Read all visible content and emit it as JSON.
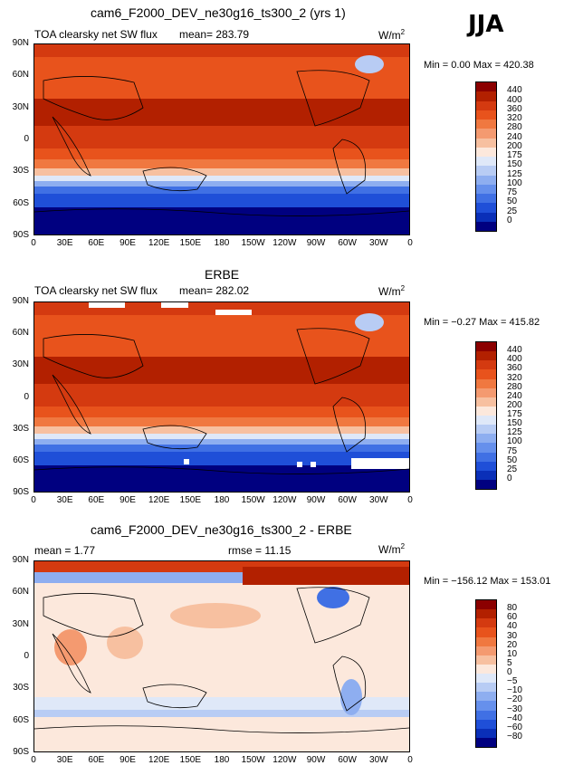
{
  "season": "JJA",
  "x_ticks": [
    "0",
    "30E",
    "60E",
    "90E",
    "120E",
    "150E",
    "180",
    "150W",
    "120W",
    "90W",
    "60W",
    "30W",
    "0"
  ],
  "y_ticks": [
    "90N",
    "60N",
    "30N",
    "0",
    "30S",
    "60S",
    "90S"
  ],
  "units_prefix": "W/m",
  "units_exp": "2",
  "panels": [
    {
      "title": "cam6_F2000_DEV_ne30g16_ts300_2 (yrs 1)",
      "variable": "TOA clearsky net SW flux",
      "mean_text": "mean= 283.79",
      "minmax_text": "Min =    0.00 Max = 420.38",
      "colorbar_labels": [
        "440",
        "400",
        "360",
        "320",
        "280",
        "240",
        "200",
        "175",
        "150",
        "125",
        "100",
        "75",
        "50",
        "25",
        "0"
      ]
    },
    {
      "title": "ERBE",
      "variable": "TOA clearsky net SW flux",
      "mean_text": "mean= 282.02",
      "minmax_text": "Min =  −0.27 Max = 415.82",
      "colorbar_labels": [
        "440",
        "400",
        "360",
        "320",
        "280",
        "240",
        "200",
        "175",
        "150",
        "125",
        "100",
        "75",
        "50",
        "25",
        "0"
      ]
    },
    {
      "title": "cam6_F2000_DEV_ne30g16_ts300_2 - ERBE",
      "mean_text": "mean =   1.77",
      "rmse_text": "rmse =   11.15",
      "minmax_text": "Min = −156.12 Max = 153.01",
      "colorbar_labels": [
        "80",
        "60",
        "40",
        "30",
        "20",
        "10",
        "5",
        "0",
        "−5",
        "−10",
        "−20",
        "−30",
        "−40",
        "−60",
        "−80"
      ]
    }
  ],
  "colors": {
    "abs_scale": [
      "#8b0000",
      "#b22000",
      "#d43a10",
      "#e8531c",
      "#f07840",
      "#f49a70",
      "#f7c0a0",
      "#fce8dc",
      "#dfe8f8",
      "#b8ccf4",
      "#8eaef0",
      "#6690ec",
      "#4070e4",
      "#1f4fd8",
      "#0a2fb8",
      "#000080"
    ],
    "diff_scale": [
      "#8b0000",
      "#b22000",
      "#d43a10",
      "#e8531c",
      "#f07840",
      "#f49a70",
      "#f7c0a0",
      "#fce8dc",
      "#dfe8f8",
      "#b8ccf4",
      "#8eaef0",
      "#6690ec",
      "#4070e4",
      "#1f4fd8",
      "#0a2fb8",
      "#000080"
    ]
  }
}
